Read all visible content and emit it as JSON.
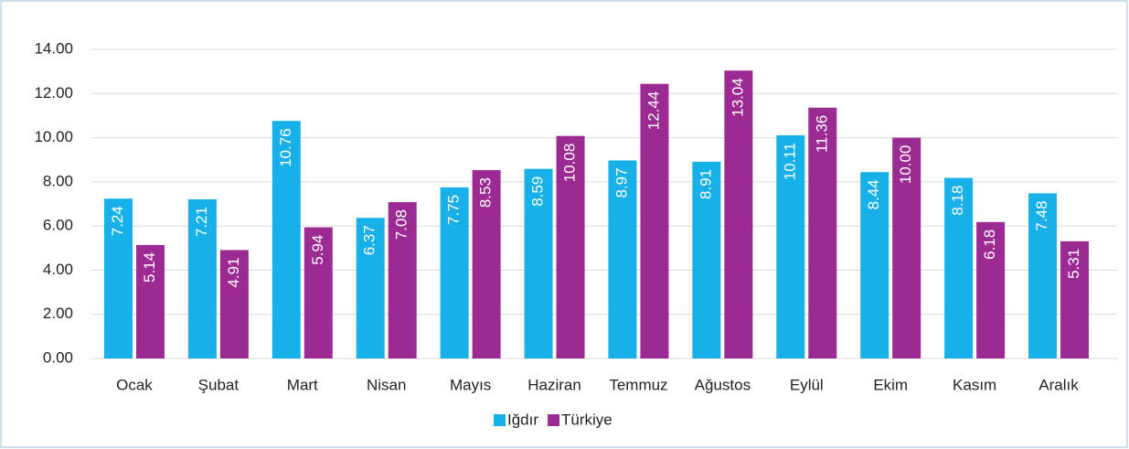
{
  "chart_data": {
    "type": "bar",
    "categories": [
      "Ocak",
      "Şubat",
      "Mart",
      "Nisan",
      "Mayıs",
      "Haziran",
      "Temmuz",
      "Ağustos",
      "Eylül",
      "Ekim",
      "Kasım",
      "Aralık"
    ],
    "series": [
      {
        "name": "Iğdır",
        "color": "#17b0e8",
        "values": [
          7.24,
          7.21,
          10.76,
          6.37,
          7.75,
          8.59,
          8.97,
          8.91,
          10.11,
          8.44,
          8.18,
          7.48
        ],
        "value_labels": [
          "7.24",
          "7.21",
          "10.76",
          "6.37",
          "7.75",
          "8.59",
          "8.97",
          "8.91",
          "10.11",
          "8.44",
          "8.18",
          "7.48"
        ]
      },
      {
        "name": "Türkiye",
        "color": "#9c2a93",
        "values": [
          5.14,
          4.91,
          5.94,
          7.08,
          8.53,
          10.08,
          12.44,
          13.04,
          11.36,
          10.0,
          6.18,
          5.31
        ],
        "value_labels": [
          "5.14",
          "4.91",
          "5.94",
          "7.08",
          "8.53",
          "10.08",
          "12.44",
          "13.04",
          "11.36",
          "10.00",
          "6.18",
          "5.31"
        ]
      }
    ],
    "ylim": [
      0,
      14
    ],
    "yticks": [
      {
        "value": 0,
        "label": "0.00"
      },
      {
        "value": 2,
        "label": "2.00"
      },
      {
        "value": 4,
        "label": "4.00"
      },
      {
        "value": 6,
        "label": "6.00"
      },
      {
        "value": 8,
        "label": "8.00"
      },
      {
        "value": 10,
        "label": "10.00"
      },
      {
        "value": 12,
        "label": "12.00"
      },
      {
        "value": 14,
        "label": "14.00"
      }
    ],
    "grid": true,
    "legend": "bottom"
  }
}
